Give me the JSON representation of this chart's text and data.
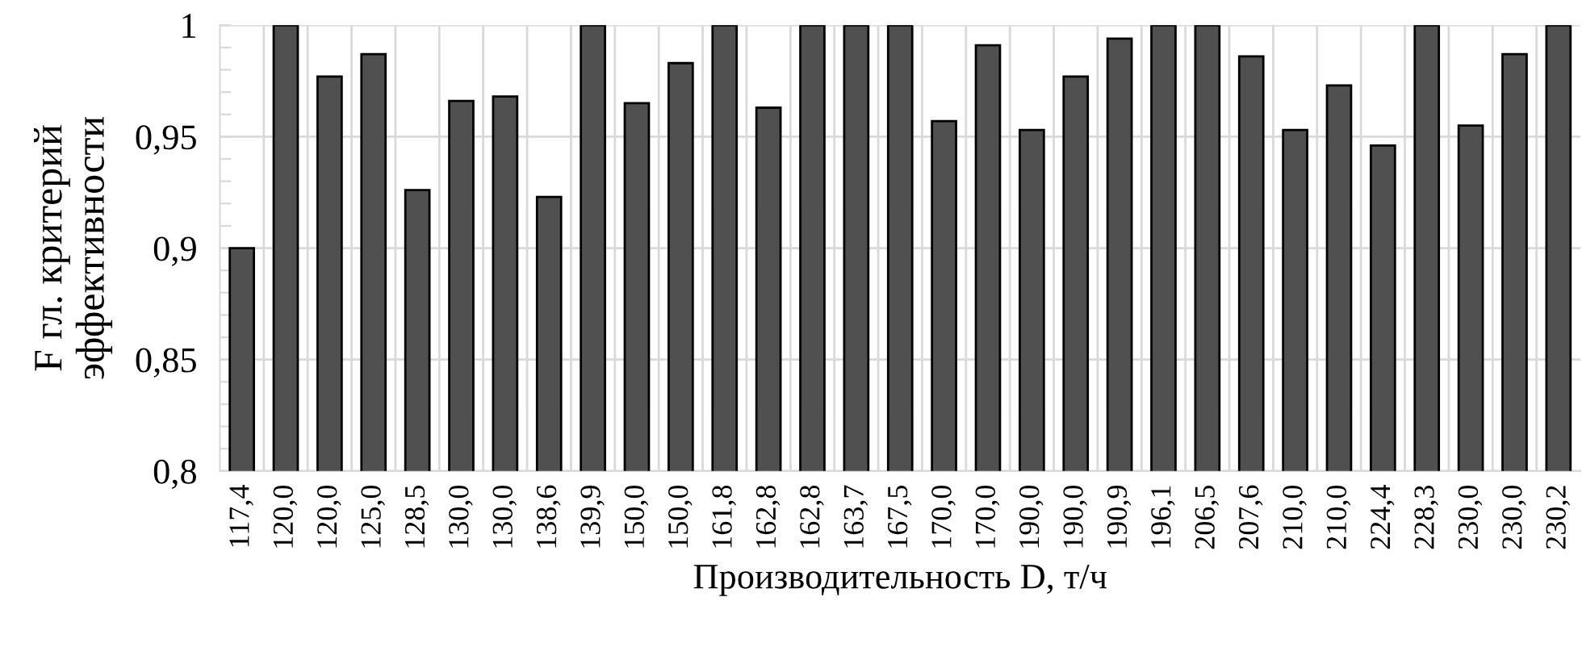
{
  "chart_data": {
    "type": "bar",
    "xlabel": "Производительность D, т/ч",
    "ylabel": "F гл. критерий\nэффективности",
    "categories": [
      "117,4",
      "120,0",
      "120,0",
      "125,0",
      "128,5",
      "130,0",
      "130,0",
      "138,6",
      "139,9",
      "150,0",
      "150,0",
      "161,8",
      "162,8",
      "162,8",
      "163,7",
      "167,5",
      "170,0",
      "170,0",
      "190,0",
      "190,0",
      "190,9",
      "196,1",
      "206,5",
      "207,6",
      "210,0",
      "210,0",
      "224,4",
      "228,3",
      "230,0",
      "230,0",
      "230,2"
    ],
    "values": [
      0.9,
      1,
      0.977,
      0.987,
      0.926,
      0.966,
      0.968,
      0.923,
      1,
      0.965,
      0.983,
      1,
      0.963,
      1,
      1,
      1,
      0.957,
      0.991,
      0.953,
      0.977,
      0.994,
      1,
      1,
      0.986,
      0.953,
      0.973,
      0.946,
      1,
      0.955,
      0.987,
      1
    ],
    "color": "#505050",
    "ylim": [
      0.8,
      1
    ],
    "yticks": [
      {
        "value": 0.8,
        "label": "0,8"
      },
      {
        "value": 0.81,
        "label": null
      },
      {
        "value": 0.82,
        "label": null
      },
      {
        "value": 0.83,
        "label": null
      },
      {
        "value": 0.84,
        "label": null
      },
      {
        "value": 0.85,
        "label": "0,85"
      },
      {
        "value": 0.86,
        "label": null
      },
      {
        "value": 0.87,
        "label": null
      },
      {
        "value": 0.88,
        "label": null
      },
      {
        "value": 0.89,
        "label": null
      },
      {
        "value": 0.9,
        "label": "0,9"
      },
      {
        "value": 0.91,
        "label": null
      },
      {
        "value": 0.92,
        "label": null
      },
      {
        "value": 0.93,
        "label": null
      },
      {
        "value": 0.94,
        "label": null
      },
      {
        "value": 0.95,
        "label": "0,95"
      },
      {
        "value": 0.96,
        "label": null
      },
      {
        "value": 0.97,
        "label": null
      },
      {
        "value": 0.98,
        "label": null
      },
      {
        "value": 0.99,
        "label": null
      },
      {
        "value": 1,
        "label": "1"
      }
    ],
    "grid": true
  }
}
